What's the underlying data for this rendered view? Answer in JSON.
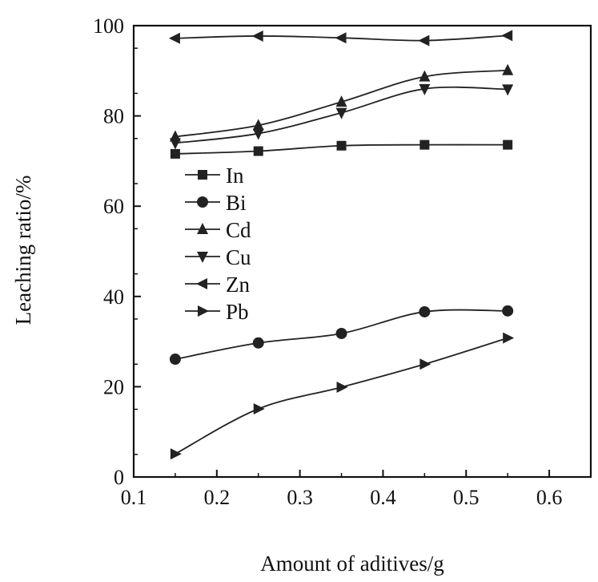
{
  "chart_data": {
    "type": "line",
    "title": "",
    "xlabel": "Amount of aditives/g",
    "ylabel": "Leaching ratio/%",
    "xlim": [
      0.1,
      0.65
    ],
    "ylim": [
      0,
      100
    ],
    "xticks": [
      "0.1",
      "0.2",
      "0.3",
      "0.4",
      "0.5",
      "0.6"
    ],
    "xtick_values": [
      0.1,
      0.2,
      0.3,
      0.4,
      0.5,
      0.6
    ],
    "yticks": [
      "0",
      "20",
      "40",
      "60",
      "80",
      "100"
    ],
    "ytick_values": [
      0,
      20,
      40,
      60,
      80,
      100
    ],
    "grid": false,
    "legend_position": "left-middle",
    "x": [
      0.15,
      0.25,
      0.35,
      0.45,
      0.55
    ],
    "series": [
      {
        "name": "In",
        "marker": "square",
        "values": [
          71.6,
          72.2,
          73.4,
          73.6,
          73.6
        ]
      },
      {
        "name": "Bi",
        "marker": "circle",
        "values": [
          26.1,
          29.7,
          31.8,
          36.6,
          36.8
        ]
      },
      {
        "name": "Cd",
        "marker": "triangle-up",
        "values": [
          75.4,
          77.9,
          83.1,
          88.7,
          90.1
        ]
      },
      {
        "name": "Cu",
        "marker": "triangle-down",
        "values": [
          74.0,
          76.1,
          80.7,
          86.0,
          85.9
        ]
      },
      {
        "name": "Zn",
        "marker": "triangle-left",
        "values": [
          97.2,
          97.7,
          97.3,
          96.7,
          97.8
        ]
      },
      {
        "name": "Pb",
        "marker": "triangle-right",
        "values": [
          5.1,
          15.1,
          19.9,
          25.0,
          30.8
        ]
      }
    ],
    "colors": {
      "line": "#222222",
      "axis": "#111111"
    }
  }
}
